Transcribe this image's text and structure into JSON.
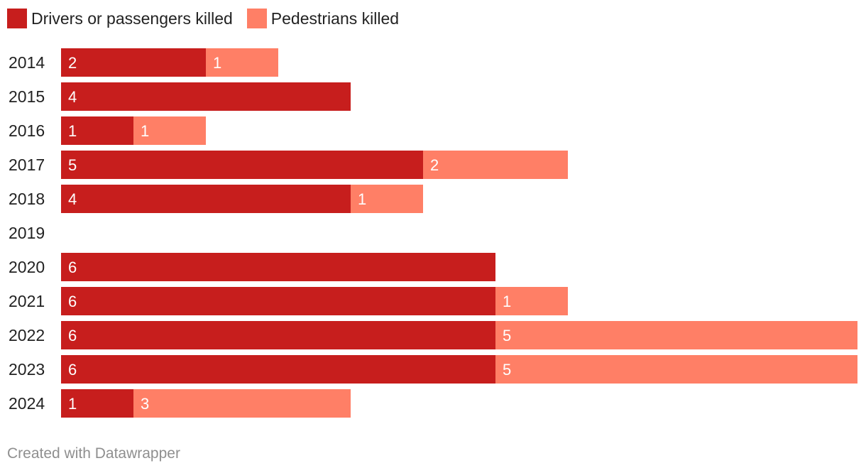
{
  "chart_data": {
    "type": "bar",
    "orientation": "horizontal",
    "stacked": true,
    "title": "",
    "xlabel": "",
    "ylabel": "",
    "xlim": [
      0,
      11
    ],
    "categories": [
      "2014",
      "2015",
      "2016",
      "2017",
      "2018",
      "2019",
      "2020",
      "2021",
      "2022",
      "2023",
      "2024"
    ],
    "series": [
      {
        "name": "Drivers or passengers killed",
        "color": "#c71e1d",
        "values": [
          2,
          4,
          1,
          5,
          4,
          0,
          6,
          6,
          6,
          6,
          1
        ]
      },
      {
        "name": "Pedestrians killed",
        "color": "#ff7f66",
        "values": [
          1,
          0,
          1,
          2,
          1,
          0,
          0,
          1,
          5,
          5,
          3
        ]
      }
    ],
    "legend": "top-left",
    "grid": false
  },
  "footer": {
    "credit": "Created with Datawrapper"
  }
}
